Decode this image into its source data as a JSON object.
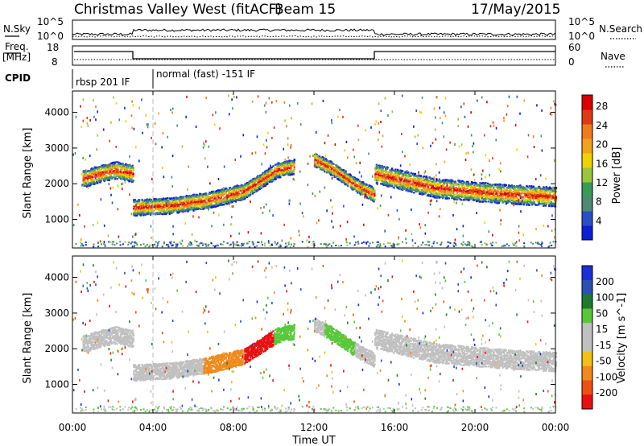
{
  "header": {
    "title": "Christmas Valley West (fitACF)",
    "beam": "Beam 15",
    "date": "17/May/2015"
  },
  "top_panels": {
    "nsky_label": "N.Sky",
    "nsky_left_ticks": [
      "10^5",
      "10^0"
    ],
    "nsky_right_ticks": [
      "10^5",
      "10^0"
    ],
    "nsearch_label": "N.Search",
    "freq_label_line1": "Freq.",
    "freq_label_line2": "[MHz]",
    "freq_left_ticks": [
      "18",
      "8"
    ],
    "nave_right_ticks": [
      "60",
      "0"
    ],
    "nave_label": "Nave",
    "cpid_label": "CPID",
    "cpid_segments": [
      "rbsp 201 IF",
      "normal (fast) -151 IF"
    ]
  },
  "colors": {
    "power": [
      "#0a1fd6",
      "#2a4ec8",
      "#4d8a72",
      "#3a9a58",
      "#9ac63c",
      "#f0d200",
      "#f2a21a",
      "#f07a1c",
      "#e03a12",
      "#d80000"
    ],
    "velocity": [
      "#1a2fd8",
      "#2c4fb8",
      "#1e7a2e",
      "#58c83a",
      "#c0c0c0",
      "#c0c0c0",
      "#f2c018",
      "#f08a1c",
      "#ee5014",
      "#e81010"
    ]
  },
  "chart_data": [
    {
      "type": "heatmap",
      "panel": "power",
      "ylabel": "Slant Range [km]",
      "xlabel": "Time UT",
      "x_ticks": [
        "00:00",
        "04:00",
        "08:00",
        "12:00",
        "16:00",
        "20:00",
        "00:00"
      ],
      "y_ticks": [
        1000,
        2000,
        3000,
        4000
      ],
      "ylim": [
        200,
        4600
      ],
      "xlim_hours": [
        0,
        24
      ],
      "colorbar_label": "Power [dB]",
      "colorbar_ticks": [
        4,
        8,
        12,
        16,
        20,
        24,
        28
      ],
      "echo_bands": [
        {
          "start_h": 0.5,
          "end_h": 3.0,
          "center_km": [
            2150,
            2300,
            2400,
            2300
          ],
          "width_km": 320
        },
        {
          "start_h": 3.0,
          "end_h": 8.5,
          "center_km": [
            1350,
            1400,
            1550,
            1800
          ],
          "width_km": 300
        },
        {
          "start_h": 8.5,
          "end_h": 11.0,
          "center_km": [
            1800,
            2100,
            2400,
            2500
          ],
          "width_km": 280
        },
        {
          "start_h": 12.0,
          "end_h": 15.0,
          "center_km": [
            2700,
            2400,
            2000,
            1700
          ],
          "width_km": 260
        },
        {
          "start_h": 15.0,
          "end_h": 24.0,
          "center_km": [
            2300,
            1900,
            1750,
            1650
          ],
          "width_km": 360
        }
      ]
    },
    {
      "type": "heatmap",
      "panel": "velocity",
      "ylabel": "Slant Range [km]",
      "xlabel": "Time UT",
      "x_ticks": [
        "00:00",
        "04:00",
        "08:00",
        "12:00",
        "16:00",
        "20:00",
        "00:00"
      ],
      "y_ticks": [
        1000,
        2000,
        3000,
        4000
      ],
      "ylim": [
        200,
        4600
      ],
      "xlim_hours": [
        0,
        24
      ],
      "colorbar_label": "Velocity [m s^-1]",
      "colorbar_ticks": [
        200,
        100,
        50,
        15,
        -15,
        -50,
        -100,
        -200
      ]
    }
  ]
}
